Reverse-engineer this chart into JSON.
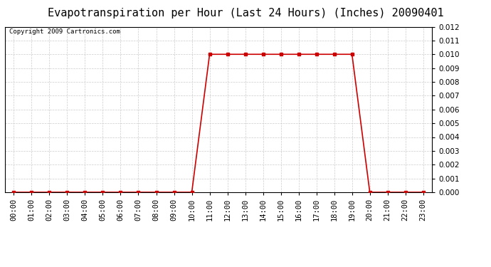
{
  "title": "Evapotranspiration per Hour (Last 24 Hours) (Inches) 20090401",
  "copyright_text": "Copyright 2009 Cartronics.com",
  "x_labels": [
    "00:00",
    "01:00",
    "02:00",
    "03:00",
    "04:00",
    "05:00",
    "06:00",
    "07:00",
    "08:00",
    "09:00",
    "10:00",
    "11:00",
    "12:00",
    "13:00",
    "14:00",
    "15:00",
    "16:00",
    "17:00",
    "18:00",
    "19:00",
    "20:00",
    "21:00",
    "22:00",
    "23:00"
  ],
  "y_values": [
    0.0,
    0.0,
    0.0,
    0.0,
    0.0,
    0.0,
    0.0,
    0.0,
    0.0,
    0.0,
    0.0,
    0.01,
    0.01,
    0.01,
    0.01,
    0.01,
    0.01,
    0.01,
    0.01,
    0.01,
    0.0,
    0.0,
    0.0,
    0.0
  ],
  "line_color": "#cc0000",
  "marker": "s",
  "marker_size": 2.5,
  "ylim": [
    0,
    0.012
  ],
  "yticks": [
    0.0,
    0.001,
    0.002,
    0.003,
    0.004,
    0.005,
    0.006,
    0.007,
    0.008,
    0.009,
    0.01,
    0.011,
    0.012
  ],
  "background_color": "#ffffff",
  "grid_color": "#cccccc",
  "title_fontsize": 11,
  "copyright_fontsize": 6.5,
  "tick_fontsize": 7.5
}
